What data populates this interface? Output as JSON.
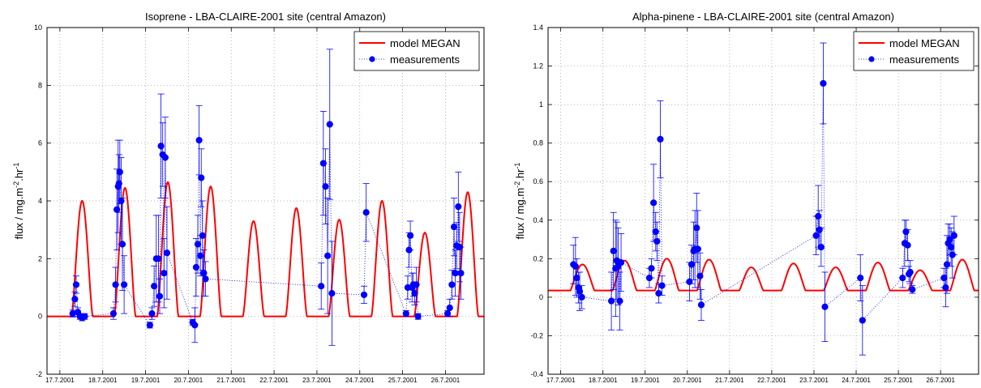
{
  "chart_data": [
    {
      "type": "line",
      "title": "Isoprene - LBA-CLAIRE-2001 site (central Amazon)",
      "ylabel": "flux / mg.m",
      "ylabel_sup1": "-2",
      "ylabel_mid": ".hr",
      "ylabel_sup2": "-1",
      "xlim": [
        16.7,
        26.9
      ],
      "ylim": [
        -2,
        10
      ],
      "yticks": [
        -2,
        0,
        2,
        4,
        6,
        8,
        10
      ],
      "ytick_labels": [
        "-2",
        "0",
        "2",
        "4",
        "6",
        "8",
        "10"
      ],
      "x_ticks": [
        17,
        18,
        19,
        20,
        21,
        22,
        23,
        24,
        25,
        26
      ],
      "x_tick_labels": [
        "17.7.2001",
        "18.7.2001",
        "19.7.2001",
        "20.7.2001",
        "21.7.2001",
        "22.7.2001",
        "23.7.2001",
        "24.7.2001",
        "25.7.2001",
        "26.7.2001"
      ],
      "grid": true,
      "legend": "top-right",
      "series": [
        {
          "name": "model MEGAN",
          "kind": "model",
          "color": "#ff0000",
          "baseline": 0,
          "day_start": 0.27,
          "day_end": 0.77,
          "power": 1.5,
          "peaks": [
            4.0,
            4.45,
            4.65,
            4.5,
            3.3,
            3.75,
            3.35,
            4.0,
            2.9,
            4.3
          ]
        },
        {
          "name": "measurements",
          "kind": "measure",
          "color": "#0000ff",
          "points": [
            [
              17.3,
              0.1,
              0.12
            ],
            [
              17.35,
              0.6,
              0.25
            ],
            [
              17.38,
              1.1,
              0.3
            ],
            [
              17.42,
              0.15,
              0.15
            ],
            [
              17.47,
              0.0,
              0.1
            ],
            [
              17.52,
              -0.05,
              0.1
            ],
            [
              17.58,
              0.0,
              0.1
            ],
            [
              18.25,
              0.1,
              0.2
            ],
            [
              18.3,
              1.1,
              0.6
            ],
            [
              18.33,
              3.7,
              1.4
            ],
            [
              18.36,
              4.5,
              1.6
            ],
            [
              18.38,
              4.6,
              1.0
            ],
            [
              18.4,
              5.0,
              1.1
            ],
            [
              18.43,
              4.0,
              1.5
            ],
            [
              18.46,
              2.5,
              1.6
            ],
            [
              18.5,
              1.1,
              1.0
            ],
            [
              19.1,
              -0.3,
              0.1
            ],
            [
              19.15,
              0.1,
              0.2
            ],
            [
              19.2,
              1.05,
              0.7
            ],
            [
              19.25,
              2.0,
              1.5
            ],
            [
              19.3,
              2.0,
              1.5
            ],
            [
              19.33,
              0.7,
              0.6
            ],
            [
              19.36,
              5.9,
              1.8
            ],
            [
              19.4,
              5.6,
              1.1
            ],
            [
              19.43,
              1.5,
              1.2
            ],
            [
              19.46,
              5.5,
              1.4
            ],
            [
              19.5,
              2.2,
              1.6
            ],
            [
              20.1,
              -0.2,
              0.1
            ],
            [
              20.15,
              -0.3,
              0.6
            ],
            [
              20.18,
              1.7,
              1.0
            ],
            [
              20.22,
              2.5,
              1.0
            ],
            [
              20.25,
              6.1,
              1.2
            ],
            [
              20.28,
              2.1,
              0.7
            ],
            [
              20.3,
              4.8,
              1.0
            ],
            [
              20.33,
              2.8,
              1.2
            ],
            [
              20.36,
              1.5,
              0.8
            ],
            [
              20.4,
              1.3,
              0.6
            ],
            [
              23.1,
              1.05,
              0.8
            ],
            [
              23.15,
              5.3,
              1.8
            ],
            [
              23.2,
              4.5,
              1.3
            ],
            [
              23.25,
              2.1,
              2.0
            ],
            [
              23.3,
              6.65,
              2.6
            ],
            [
              23.35,
              0.8,
              1.8
            ],
            [
              24.1,
              0.75,
              0.3
            ],
            [
              24.15,
              3.6,
              1.0
            ],
            [
              25.08,
              0.1,
              0.1
            ],
            [
              25.12,
              1.0,
              0.4
            ],
            [
              25.15,
              2.3,
              0.6
            ],
            [
              25.18,
              2.8,
              0.5
            ],
            [
              25.22,
              1.0,
              0.5
            ],
            [
              25.25,
              1.1,
              0.4
            ],
            [
              25.28,
              0.8,
              0.4
            ],
            [
              25.32,
              1.1,
              0.6
            ],
            [
              25.36,
              0.0,
              0.1
            ],
            [
              26.05,
              0.1,
              0.1
            ],
            [
              26.1,
              0.3,
              0.3
            ],
            [
              26.15,
              1.1,
              0.5
            ],
            [
              26.2,
              3.1,
              1.0
            ],
            [
              26.23,
              1.5,
              0.8
            ],
            [
              26.26,
              2.45,
              0.8
            ],
            [
              26.3,
              3.8,
              1.2
            ],
            [
              26.33,
              2.4,
              1.2
            ],
            [
              26.36,
              1.5,
              0.9
            ]
          ]
        }
      ]
    },
    {
      "type": "line",
      "title": "Alpha-pinene - LBA-CLAIRE-2001 site (central Amazon)",
      "ylabel": "flux / mg.m",
      "ylabel_sup1": "-2",
      "ylabel_mid": ".hr",
      "ylabel_sup2": "-1",
      "xlim": [
        16.7,
        26.9
      ],
      "ylim": [
        -0.4,
        1.4
      ],
      "yticks": [
        -0.4,
        -0.2,
        0,
        0.2,
        0.4,
        0.6,
        0.8,
        1,
        1.2,
        1.4
      ],
      "ytick_labels": [
        "-0.4",
        "-0.2",
        "0",
        "0.2",
        "0.4",
        "0.6",
        "0.8",
        "1",
        "1.2",
        "1.4"
      ],
      "x_ticks": [
        17,
        18,
        19,
        20,
        21,
        22,
        23,
        24,
        25,
        26
      ],
      "x_tick_labels": [
        "17.7.2001",
        "18.7.2001",
        "19.7.2001",
        "20.7.2001",
        "21.7.2001",
        "22.7.2001",
        "23.7.2001",
        "24.7.2001",
        "25.7.2001",
        "26.7.2001"
      ],
      "grid": true,
      "legend": "top-right",
      "series": [
        {
          "name": "model MEGAN",
          "kind": "model",
          "color": "#ff0000",
          "baseline": 0.035,
          "day_start": 0.23,
          "day_end": 0.8,
          "power": 1.2,
          "peaks": [
            0.17,
            0.19,
            0.2,
            0.195,
            0.155,
            0.175,
            0.155,
            0.18,
            0.14,
            0.195
          ]
        },
        {
          "name": "measurements",
          "kind": "measure",
          "color": "#0000ff",
          "points": [
            [
              17.3,
              0.17,
              0.1
            ],
            [
              17.35,
              0.16,
              0.15
            ],
            [
              17.38,
              0.1,
              0.1
            ],
            [
              17.42,
              0.05,
              0.08
            ],
            [
              17.45,
              0.03,
              0.1
            ],
            [
              17.5,
              0.0,
              0.06
            ],
            [
              18.2,
              -0.02,
              0.15
            ],
            [
              18.25,
              0.24,
              0.2
            ],
            [
              18.3,
              0.15,
              0.25
            ],
            [
              18.33,
              0.19,
              0.2
            ],
            [
              18.36,
              0.16,
              0.2
            ],
            [
              18.4,
              -0.02,
              0.15
            ],
            [
              18.43,
              0.18,
              0.15
            ],
            [
              19.1,
              0.1,
              0.05
            ],
            [
              19.15,
              0.15,
              0.05
            ],
            [
              19.2,
              0.49,
              0.2
            ],
            [
              19.25,
              0.34,
              0.1
            ],
            [
              19.28,
              0.29,
              0.1
            ],
            [
              19.32,
              0.02,
              0.05
            ],
            [
              19.36,
              0.82,
              0.2
            ],
            [
              19.4,
              0.06,
              0.05
            ],
            [
              20.05,
              0.08,
              0.1
            ],
            [
              20.1,
              0.17,
              0.1
            ],
            [
              20.15,
              0.24,
              0.15
            ],
            [
              20.18,
              0.25,
              0.2
            ],
            [
              20.22,
              0.36,
              0.18
            ],
            [
              20.25,
              0.25,
              0.2
            ],
            [
              20.3,
              0.11,
              0.12
            ],
            [
              20.33,
              -0.04,
              0.08
            ],
            [
              23.05,
              0.32,
              0.1
            ],
            [
              23.1,
              0.42,
              0.16
            ],
            [
              23.13,
              0.35,
              0.1
            ],
            [
              23.17,
              0.26,
              0.1
            ],
            [
              23.22,
              1.11,
              0.21
            ],
            [
              23.26,
              -0.05,
              0.18
            ],
            [
              24.1,
              0.1,
              0.12
            ],
            [
              24.15,
              -0.12,
              0.18
            ],
            [
              25.1,
              0.1,
              0.05
            ],
            [
              25.15,
              0.28,
              0.12
            ],
            [
              25.18,
              0.34,
              0.06
            ],
            [
              25.22,
              0.27,
              0.08
            ],
            [
              25.25,
              0.12,
              0.04
            ],
            [
              25.28,
              0.13,
              0.06
            ],
            [
              25.33,
              0.04,
              0.02
            ],
            [
              26.08,
              0.1,
              0.05
            ],
            [
              26.12,
              0.05,
              0.1
            ],
            [
              26.15,
              0.17,
              0.15
            ],
            [
              26.18,
              0.28,
              0.1
            ],
            [
              26.22,
              0.3,
              0.08
            ],
            [
              26.25,
              0.26,
              0.1
            ],
            [
              26.28,
              0.22,
              0.12
            ],
            [
              26.32,
              0.32,
              0.1
            ]
          ]
        }
      ]
    }
  ]
}
